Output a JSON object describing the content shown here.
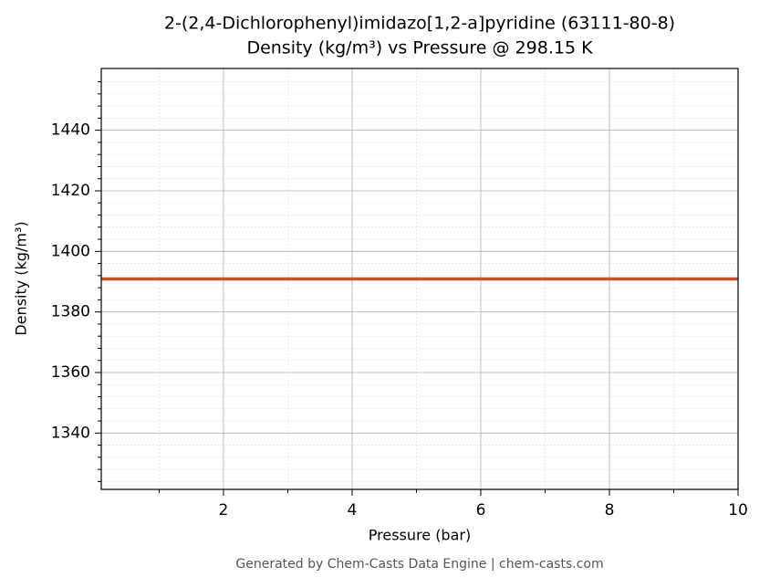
{
  "chart_data": {
    "type": "line",
    "title": "2-(2,4-Dichlorophenyl)imidazo[1,2-a]pyridine (63111-80-8)",
    "subtitle": "Density (kg/m³) vs Pressure @ 298.15 K",
    "x_label": "Pressure (bar)",
    "y_label": "Density (kg/m³)",
    "x": [
      0.1,
      10
    ],
    "series": [
      {
        "name": "Density",
        "color": "#c65228",
        "values": [
          1390.9,
          1390.9
        ]
      }
    ],
    "xlim": [
      0.1,
      10
    ],
    "xticks": [
      2,
      4,
      6,
      8,
      10
    ],
    "xminorticks": [
      1,
      3,
      5,
      7,
      9
    ],
    "ylim": [
      1321.4,
      1460.4
    ],
    "yticks": [
      1340,
      1360,
      1380,
      1400,
      1420,
      1440
    ],
    "yminorticks": [
      1324,
      1328,
      1332,
      1336,
      1344,
      1348,
      1352,
      1356,
      1364,
      1368,
      1372,
      1376,
      1384,
      1388,
      1392,
      1396,
      1404,
      1408,
      1412,
      1416,
      1424,
      1428,
      1432,
      1436,
      1444,
      1448,
      1452,
      1456
    ],
    "grid": true,
    "footer": "Generated by Chem-Casts Data Engine | chem-casts.com"
  }
}
